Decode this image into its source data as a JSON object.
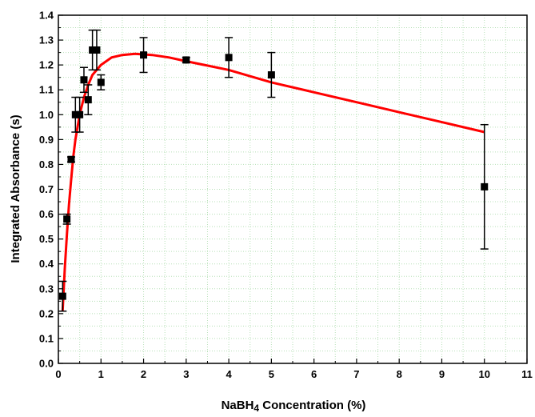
{
  "chart_data": {
    "type": "scatter",
    "xlabel": {
      "prefix": "NaBH",
      "subscript": "4",
      "suffix": " Concentration (%)"
    },
    "ylabel": "Integrated Absorbance (s)",
    "xlim": [
      0,
      11
    ],
    "ylim": [
      0,
      1.4
    ],
    "x_ticks": [
      0,
      1,
      2,
      3,
      4,
      5,
      6,
      7,
      8,
      9,
      10,
      11
    ],
    "y_ticks": [
      0.0,
      0.1,
      0.2,
      0.3,
      0.4,
      0.5,
      0.6,
      0.7,
      0.8,
      0.9,
      1.0,
      1.1,
      1.2,
      1.3,
      1.4
    ],
    "grid": true,
    "colors": {
      "fit": "#ff0000",
      "points": "#000000",
      "grid": "#b8e0b8"
    },
    "series": [
      {
        "type": "scatter",
        "error_bars": true,
        "points": [
          {
            "x": 0.1,
            "y": 0.27,
            "err": 0.06
          },
          {
            "x": 0.2,
            "y": 0.58,
            "err": 0.02
          },
          {
            "x": 0.3,
            "y": 0.82,
            "err": 0.01
          },
          {
            "x": 0.4,
            "y": 1.0,
            "err": 0.07
          },
          {
            "x": 0.5,
            "y": 1.0,
            "err": 0.07
          },
          {
            "x": 0.6,
            "y": 1.14,
            "err": 0.05
          },
          {
            "x": 0.7,
            "y": 1.06,
            "err": 0.06
          },
          {
            "x": 0.8,
            "y": 1.26,
            "err": 0.08
          },
          {
            "x": 0.9,
            "y": 1.26,
            "err": 0.08
          },
          {
            "x": 1.0,
            "y": 1.13,
            "err": 0.03
          },
          {
            "x": 2.0,
            "y": 1.24,
            "err": 0.07
          },
          {
            "x": 3.0,
            "y": 1.22,
            "err": 0.01
          },
          {
            "x": 4.0,
            "y": 1.23,
            "err": 0.08
          },
          {
            "x": 5.0,
            "y": 1.16,
            "err": 0.09
          },
          {
            "x": 10.0,
            "y": 0.71,
            "err": 0.25
          }
        ]
      },
      {
        "type": "line",
        "points": [
          {
            "x": 0.1,
            "y": 0.21
          },
          {
            "x": 0.15,
            "y": 0.38
          },
          {
            "x": 0.2,
            "y": 0.52
          },
          {
            "x": 0.25,
            "y": 0.64
          },
          {
            "x": 0.3,
            "y": 0.74
          },
          {
            "x": 0.35,
            "y": 0.83
          },
          {
            "x": 0.4,
            "y": 0.9
          },
          {
            "x": 0.5,
            "y": 1.0
          },
          {
            "x": 0.6,
            "y": 1.07
          },
          {
            "x": 0.7,
            "y": 1.12
          },
          {
            "x": 0.8,
            "y": 1.16
          },
          {
            "x": 1.0,
            "y": 1.2
          },
          {
            "x": 1.25,
            "y": 1.23
          },
          {
            "x": 1.5,
            "y": 1.24
          },
          {
            "x": 1.8,
            "y": 1.245
          },
          {
            "x": 2.2,
            "y": 1.24
          },
          {
            "x": 2.6,
            "y": 1.23
          },
          {
            "x": 3.0,
            "y": 1.215
          },
          {
            "x": 4.0,
            "y": 1.18
          },
          {
            "x": 5.0,
            "y": 1.13
          },
          {
            "x": 6.0,
            "y": 1.09
          },
          {
            "x": 7.0,
            "y": 1.05
          },
          {
            "x": 8.0,
            "y": 1.01
          },
          {
            "x": 9.0,
            "y": 0.97
          },
          {
            "x": 10.0,
            "y": 0.93
          }
        ]
      }
    ]
  }
}
